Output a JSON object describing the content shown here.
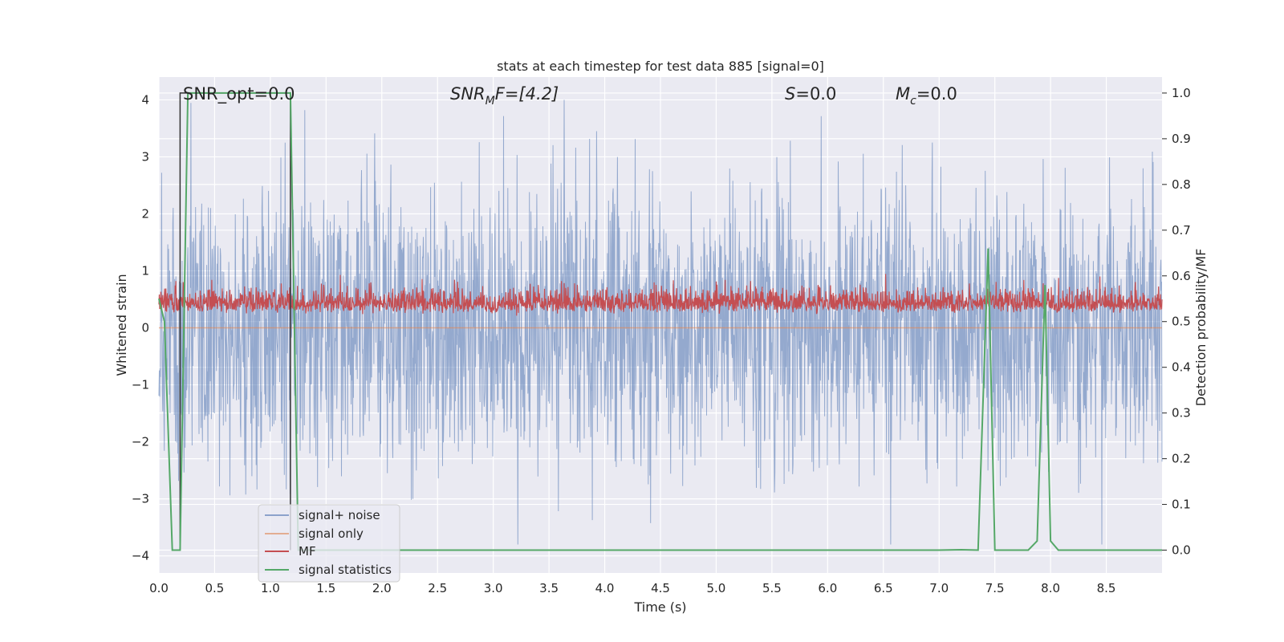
{
  "chart_data": {
    "type": "line",
    "title": "stats at each timestep for test data 885 [signal=0]",
    "xlabel": "Time (s)",
    "ylabel": "Whitened strain",
    "ylabel_right": "Detection probability/MF",
    "xlim": [
      0.0,
      9.0
    ],
    "ylim": [
      -4.3,
      4.4
    ],
    "ylim_right": [
      -0.05,
      1.035
    ],
    "xticks": [
      0.0,
      0.5,
      1.0,
      1.5,
      2.0,
      2.5,
      3.0,
      3.5,
      4.0,
      4.5,
      5.0,
      5.5,
      6.0,
      6.5,
      7.0,
      7.5,
      8.0,
      8.5
    ],
    "xtick_labels": [
      "0.0",
      "0.5",
      "1.0",
      "1.5",
      "2.0",
      "2.5",
      "3.0",
      "3.5",
      "4.0",
      "4.5",
      "5.0",
      "5.5",
      "6.0",
      "6.5",
      "7.0",
      "7.5",
      "8.0",
      "8.5"
    ],
    "yticks": [
      -4,
      -3,
      -2,
      -1,
      0,
      1,
      2,
      3,
      4
    ],
    "ytick_labels": [
      "−4",
      "−3",
      "−2",
      "−1",
      "0",
      "1",
      "2",
      "3",
      "4"
    ],
    "yticks_right": [
      0.0,
      0.1,
      0.2,
      0.3,
      0.4,
      0.5,
      0.6,
      0.7,
      0.8,
      0.9,
      1.0
    ],
    "ytick_right_labels": [
      "0.0",
      "0.1",
      "0.2",
      "0.3",
      "0.4",
      "0.5",
      "0.6",
      "0.7",
      "0.8",
      "0.9",
      "1.0"
    ],
    "grid": true,
    "legend_placement": "lower-left",
    "annotations": {
      "snr_opt": "SNR_opt=0.0",
      "snr_mf_main": "SNR",
      "snr_mf_sub": "M",
      "snr_mf_rest": "F=[4.2]",
      "s_italic": "S",
      "s_rest": "=0.0",
      "mc_main": "M",
      "mc_sub": "c",
      "mc_rest": "=0.0"
    },
    "series": [
      {
        "name": "signal+ noise",
        "color": "#4c72b0",
        "axis": "left",
        "note": "dense whitened noise, roughly within [-3.8, 4.0]"
      },
      {
        "name": "signal only",
        "color": "#dd8452",
        "axis": "left",
        "x": [
          0.0,
          9.0
        ],
        "y": [
          0.0,
          0.0
        ]
      },
      {
        "name": "MF",
        "color": "#c44e52",
        "axis": "right",
        "note": "noisy band roughly 0.5 to 0.58, peaks near 0.61"
      },
      {
        "name": "signal statistics",
        "color": "#55a868",
        "axis": "right",
        "x": [
          0.0,
          0.05,
          0.12,
          0.19,
          0.26,
          1.18,
          1.25,
          1.3,
          1.5,
          7.0,
          7.2,
          7.35,
          7.44,
          7.5,
          7.65,
          7.8,
          7.88,
          7.95,
          8.0,
          8.07,
          8.3,
          9.0
        ],
        "y": [
          0.55,
          0.5,
          0.0,
          0.0,
          1.0,
          1.0,
          0.0,
          0.0,
          0.0,
          0.0,
          0.001,
          0.0,
          0.66,
          0.0,
          0.0,
          0.0,
          0.02,
          0.58,
          0.02,
          0.0,
          0.0,
          0.0
        ]
      },
      {
        "name": "",
        "color": "#333333",
        "axis": "right",
        "x": [
          0.19,
          0.19,
          1.18,
          1.18
        ],
        "y": [
          0.0,
          1.0,
          1.0,
          0.0
        ]
      }
    ]
  }
}
